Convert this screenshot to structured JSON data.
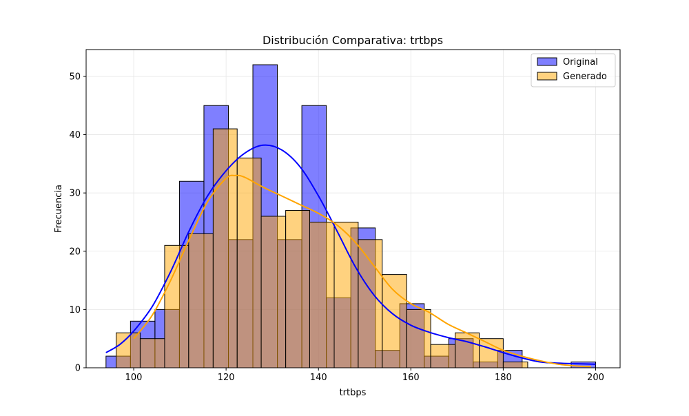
{
  "chart_data": {
    "type": "bar",
    "title": "Distribución Comparativa: trtbps",
    "xlabel": "trtbps",
    "ylabel": "Frecuencia",
    "xlim": [
      89.7,
      205.3
    ],
    "ylim": [
      0,
      54.6
    ],
    "x_ticks": [
      100,
      120,
      140,
      160,
      180,
      200
    ],
    "y_ticks": [
      0,
      10,
      20,
      30,
      40,
      50
    ],
    "grid": true,
    "legend_position": "top-right",
    "series": [
      {
        "name": "Original",
        "color": "#0000ff",
        "bins": [
          {
            "x0": 94.0,
            "x1": 99.3,
            "count": 2
          },
          {
            "x0": 99.3,
            "x1": 104.6,
            "count": 8
          },
          {
            "x0": 104.6,
            "x1": 109.9,
            "count": 10
          },
          {
            "x0": 109.9,
            "x1": 115.2,
            "count": 32
          },
          {
            "x0": 115.2,
            "x1": 120.5,
            "count": 45
          },
          {
            "x0": 120.5,
            "x1": 125.8,
            "count": 22
          },
          {
            "x0": 125.8,
            "x1": 131.1,
            "count": 52
          },
          {
            "x0": 131.1,
            "x1": 136.4,
            "count": 22
          },
          {
            "x0": 136.4,
            "x1": 141.7,
            "count": 45
          },
          {
            "x0": 141.7,
            "x1": 147.0,
            "count": 12
          },
          {
            "x0": 147.0,
            "x1": 152.3,
            "count": 24
          },
          {
            "x0": 152.3,
            "x1": 157.6,
            "count": 3
          },
          {
            "x0": 157.6,
            "x1": 162.9,
            "count": 11
          },
          {
            "x0": 162.9,
            "x1": 168.2,
            "count": 2
          },
          {
            "x0": 168.2,
            "x1": 173.5,
            "count": 5
          },
          {
            "x0": 173.5,
            "x1": 178.8,
            "count": 1
          },
          {
            "x0": 178.8,
            "x1": 184.1,
            "count": 3
          },
          {
            "x0": 184.1,
            "x1": 189.4,
            "count": 0
          },
          {
            "x0": 189.4,
            "x1": 194.7,
            "count": 0
          },
          {
            "x0": 194.7,
            "x1": 200.0,
            "count": 1
          }
        ],
        "kde": [
          [
            94,
            2.6
          ],
          [
            97,
            4.0
          ],
          [
            100,
            6.3
          ],
          [
            104,
            10.5
          ],
          [
            108,
            16.5
          ],
          [
            112,
            23.5
          ],
          [
            116,
            29.5
          ],
          [
            120,
            33.8
          ],
          [
            124,
            36.8
          ],
          [
            128,
            38.2
          ],
          [
            132,
            37.4
          ],
          [
            136,
            34.5
          ],
          [
            140,
            29.5
          ],
          [
            144,
            23.5
          ],
          [
            148,
            17.3
          ],
          [
            152,
            12.5
          ],
          [
            156,
            9.3
          ],
          [
            160,
            7.3
          ],
          [
            164,
            6.1
          ],
          [
            168,
            5.2
          ],
          [
            172,
            4.5
          ],
          [
            176,
            3.6
          ],
          [
            180,
            2.6
          ],
          [
            184,
            1.7
          ],
          [
            188,
            1.0
          ],
          [
            192,
            0.8
          ],
          [
            196,
            0.7
          ],
          [
            200,
            0.6
          ]
        ]
      },
      {
        "name": "Generado",
        "color": "#ffa500",
        "bins": [
          {
            "x0": 96.2,
            "x1": 101.4,
            "count": 6
          },
          {
            "x0": 101.4,
            "x1": 106.7,
            "count": 5
          },
          {
            "x0": 106.7,
            "x1": 111.9,
            "count": 21
          },
          {
            "x0": 111.9,
            "x1": 117.2,
            "count": 23
          },
          {
            "x0": 117.2,
            "x1": 122.4,
            "count": 41
          },
          {
            "x0": 122.4,
            "x1": 127.6,
            "count": 36
          },
          {
            "x0": 127.6,
            "x1": 132.9,
            "count": 26
          },
          {
            "x0": 132.9,
            "x1": 138.1,
            "count": 27
          },
          {
            "x0": 138.1,
            "x1": 143.4,
            "count": 25
          },
          {
            "x0": 143.4,
            "x1": 148.6,
            "count": 25
          },
          {
            "x0": 148.6,
            "x1": 153.8,
            "count": 22
          },
          {
            "x0": 153.8,
            "x1": 159.1,
            "count": 16
          },
          {
            "x0": 159.1,
            "x1": 164.3,
            "count": 10
          },
          {
            "x0": 164.3,
            "x1": 169.6,
            "count": 4
          },
          {
            "x0": 169.6,
            "x1": 174.8,
            "count": 6
          },
          {
            "x0": 174.8,
            "x1": 180.0,
            "count": 5
          },
          {
            "x0": 180.0,
            "x1": 185.3,
            "count": 1
          },
          {
            "x0": 185.3,
            "x1": 190.5,
            "count": 0
          },
          {
            "x0": 190.5,
            "x1": 195.8,
            "count": 0
          },
          {
            "x0": 195.8,
            "x1": 201.0,
            "count": 0
          }
        ],
        "kde": [
          [
            100,
            5.0
          ],
          [
            104,
            9.0
          ],
          [
            108,
            15.0
          ],
          [
            112,
            22.0
          ],
          [
            116,
            28.5
          ],
          [
            120,
            32.5
          ],
          [
            122,
            33.0
          ],
          [
            124,
            32.7
          ],
          [
            128,
            31.0
          ],
          [
            132,
            29.5
          ],
          [
            136,
            28.0
          ],
          [
            140,
            26.5
          ],
          [
            144,
            24.5
          ],
          [
            148,
            21.5
          ],
          [
            152,
            17.5
          ],
          [
            156,
            13.5
          ],
          [
            160,
            11.0
          ],
          [
            164,
            9.5
          ],
          [
            168,
            7.5
          ],
          [
            172,
            6.0
          ],
          [
            176,
            4.5
          ],
          [
            180,
            3.0
          ],
          [
            184,
            2.0
          ],
          [
            188,
            1.2
          ],
          [
            192,
            0.6
          ],
          [
            196,
            0.3
          ],
          [
            199,
            0.2
          ]
        ]
      }
    ]
  }
}
